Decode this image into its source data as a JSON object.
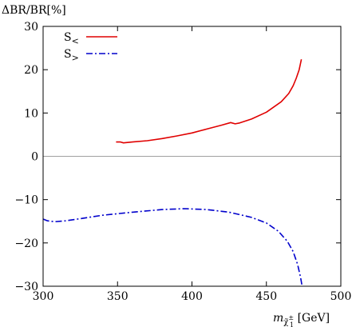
{
  "chart_data": {
    "type": "line",
    "title": "",
    "ylabel": "ΔBR/BR[%]",
    "xlabel": {
      "main": "m",
      "sub": "χ̃",
      "sub_sup": "±",
      "sub_sub": "1",
      "unit": " [GeV]"
    },
    "xlim": [
      300,
      500
    ],
    "ylim": [
      -30,
      30
    ],
    "xticks": [
      300,
      350,
      400,
      450,
      500
    ],
    "yticks": [
      -30,
      -20,
      -10,
      0,
      10,
      20,
      30
    ],
    "xtick_labels": [
      "300",
      "350",
      "400",
      "450",
      "500"
    ],
    "ytick_labels": [
      "−30",
      "−20",
      "−10",
      "0",
      "10",
      "20",
      "30"
    ],
    "grid": false,
    "zero_line": true,
    "legend_position": "top-left",
    "series": [
      {
        "name": "S<",
        "name_main": "S",
        "name_sub": "<",
        "color": "#e00000",
        "dash": "solid",
        "points": [
          [
            349,
            3.3
          ],
          [
            352,
            3.3
          ],
          [
            354,
            3.1
          ],
          [
            360,
            3.3
          ],
          [
            370,
            3.6
          ],
          [
            380,
            4.1
          ],
          [
            390,
            4.7
          ],
          [
            400,
            5.4
          ],
          [
            410,
            6.3
          ],
          [
            420,
            7.2
          ],
          [
            426,
            7.8
          ],
          [
            429,
            7.5
          ],
          [
            432,
            7.7
          ],
          [
            440,
            8.6
          ],
          [
            450,
            10.2
          ],
          [
            460,
            12.6
          ],
          [
            465,
            14.5
          ],
          [
            468,
            16.3
          ],
          [
            470,
            18.0
          ],
          [
            472,
            20.0
          ],
          [
            473.5,
            22.4
          ]
        ]
      },
      {
        "name": "S>",
        "name_main": "S",
        "name_sub": ">",
        "color": "#0000cc",
        "dash": "dashdot",
        "points": [
          [
            300,
            -14.5
          ],
          [
            303,
            -14.9
          ],
          [
            308,
            -15.1
          ],
          [
            315,
            -14.9
          ],
          [
            325,
            -14.4
          ],
          [
            340,
            -13.6
          ],
          [
            360,
            -12.9
          ],
          [
            380,
            -12.3
          ],
          [
            395,
            -12.1
          ],
          [
            410,
            -12.3
          ],
          [
            425,
            -12.9
          ],
          [
            440,
            -14.1
          ],
          [
            450,
            -15.4
          ],
          [
            458,
            -17.3
          ],
          [
            464,
            -19.6
          ],
          [
            468,
            -22.0
          ],
          [
            471,
            -25.0
          ],
          [
            473,
            -28.0
          ],
          [
            474,
            -30.0
          ]
        ]
      }
    ]
  },
  "colors": {
    "zero_line": "#a0a0a0",
    "axis": "#000000"
  }
}
